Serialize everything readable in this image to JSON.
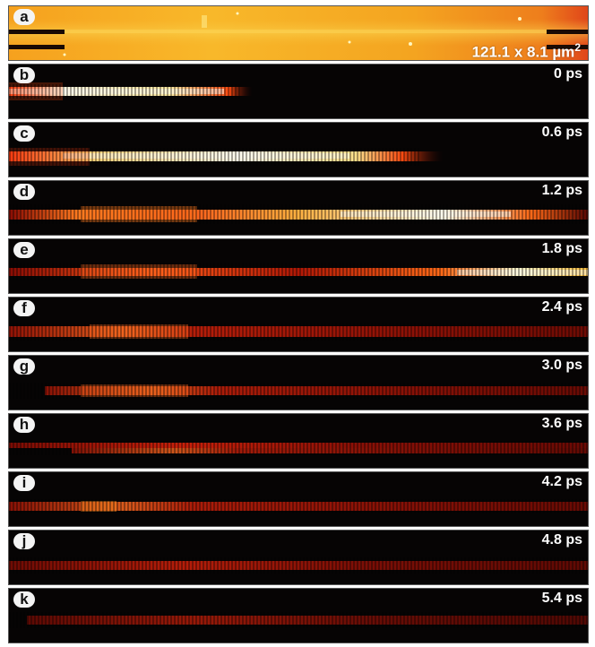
{
  "figure": {
    "panel_a": {
      "letter": "a",
      "scale_text": "121.1 x 8.1 µm",
      "scale_sup": "2"
    },
    "time_panels": [
      {
        "letter": "b",
        "time": "0 ps"
      },
      {
        "letter": "c",
        "time": "0.6 ps"
      },
      {
        "letter": "d",
        "time": "1.2 ps"
      },
      {
        "letter": "e",
        "time": "1.8 ps"
      },
      {
        "letter": "f",
        "time": "2.4 ps"
      },
      {
        "letter": "g",
        "time": "3.0 ps"
      },
      {
        "letter": "h",
        "time": "3.6 ps"
      },
      {
        "letter": "i",
        "time": "4.2 ps"
      },
      {
        "letter": "j",
        "time": "4.8 ps"
      },
      {
        "letter": "k",
        "time": "5.4 ps"
      }
    ]
  }
}
